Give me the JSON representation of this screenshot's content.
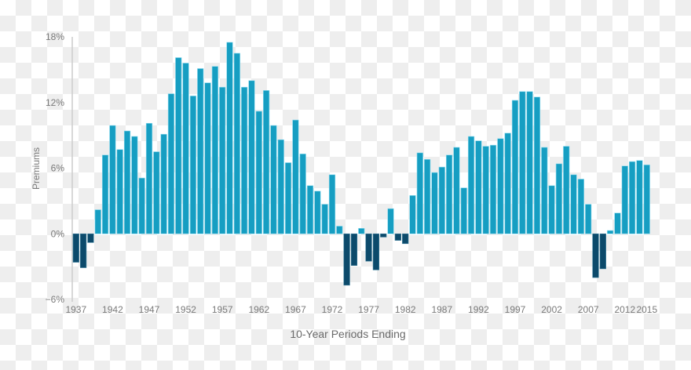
{
  "chart_data": {
    "type": "bar",
    "title": "",
    "xlabel": "10-Year Periods Ending",
    "ylabel": "Premiums",
    "ylim": [
      -6,
      18
    ],
    "yticks": [
      "18%",
      "12%",
      "6%",
      "0%",
      "−6%"
    ],
    "ytick_values": [
      18,
      12,
      6,
      0,
      -6
    ],
    "xtick_labels": [
      "1937",
      "1942",
      "1947",
      "1952",
      "1957",
      "1962",
      "1967",
      "1972",
      "1977",
      "1982",
      "1987",
      "1992",
      "1997",
      "2002",
      "2007",
      "2012",
      "2015"
    ],
    "grid": false,
    "legend": null,
    "colors": {
      "positive": "#169ec2",
      "negative": "#0c4a6b",
      "axis": "#cccccc",
      "text": "#7a7a7a"
    },
    "categories": [
      1937,
      1938,
      1939,
      1940,
      1941,
      1942,
      1943,
      1944,
      1945,
      1946,
      1947,
      1948,
      1949,
      1950,
      1951,
      1952,
      1953,
      1954,
      1955,
      1956,
      1957,
      1958,
      1959,
      1960,
      1961,
      1962,
      1963,
      1964,
      1965,
      1966,
      1967,
      1968,
      1969,
      1970,
      1971,
      1972,
      1973,
      1974,
      1975,
      1976,
      1977,
      1978,
      1979,
      1980,
      1981,
      1982,
      1983,
      1984,
      1985,
      1986,
      1987,
      1988,
      1989,
      1990,
      1991,
      1992,
      1993,
      1994,
      1995,
      1996,
      1997,
      1998,
      1999,
      2000,
      2001,
      2002,
      2003,
      2004,
      2005,
      2006,
      2007,
      2008,
      2009,
      2010,
      2011,
      2012,
      2013,
      2014,
      2015
    ],
    "values": [
      -2.6,
      -3.1,
      -0.8,
      2.2,
      7.2,
      9.9,
      7.7,
      9.4,
      8.9,
      5.1,
      10.1,
      7.5,
      9.1,
      12.8,
      16.1,
      15.6,
      12.6,
      15.1,
      13.8,
      15.3,
      13.4,
      17.5,
      16.5,
      13.4,
      14.0,
      11.2,
      13.1,
      9.9,
      8.6,
      6.5,
      10.4,
      7.3,
      4.4,
      3.9,
      2.7,
      5.4,
      0.7,
      -4.7,
      -2.9,
      0.5,
      -2.5,
      -3.3,
      -0.3,
      2.3,
      -0.6,
      -0.9,
      3.5,
      7.4,
      6.8,
      5.6,
      6.1,
      7.2,
      7.9,
      4.2,
      8.9,
      8.5,
      8.0,
      8.1,
      8.7,
      9.2,
      12.2,
      13.0,
      13.0,
      12.5,
      7.9,
      4.4,
      6.4,
      8.0,
      5.4,
      5.0,
      2.7,
      -4.0,
      -3.2,
      0.3,
      1.9,
      6.2,
      6.6,
      6.7,
      6.3
    ]
  }
}
